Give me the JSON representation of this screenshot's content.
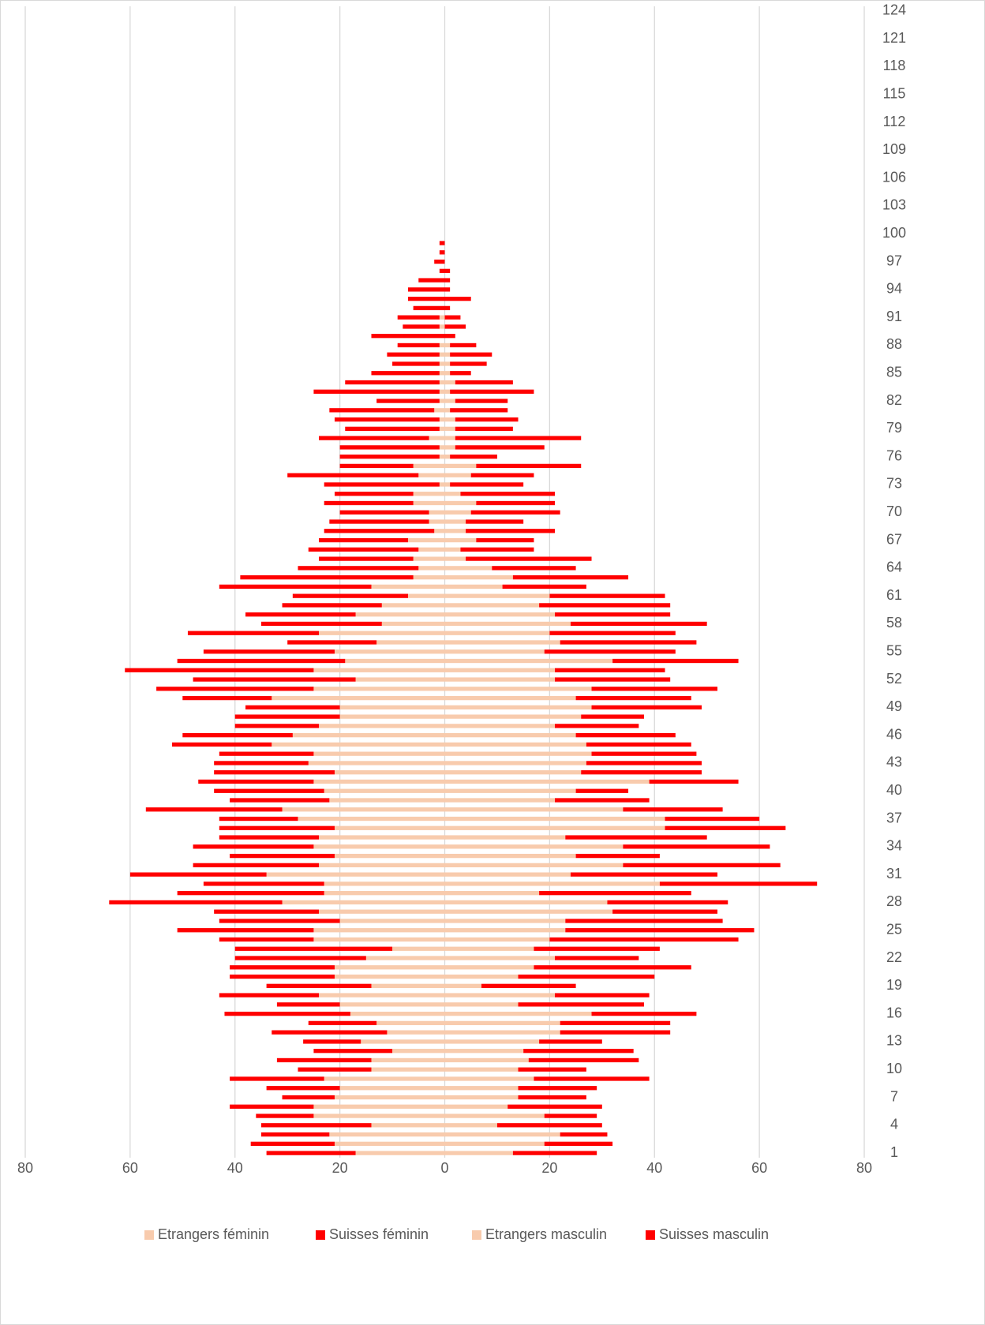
{
  "chart_data": {
    "type": "bar",
    "orientation": "horizontal",
    "stacked": true,
    "legend": "bottom",
    "grid": true,
    "categories": [
      1,
      null,
      null,
      4,
      null,
      null,
      7,
      null,
      null,
      10,
      null,
      null,
      13,
      null,
      null,
      16,
      null,
      null,
      19,
      null,
      null,
      22,
      null,
      null,
      25,
      null,
      null,
      28,
      null,
      null,
      31,
      null,
      null,
      34,
      null,
      null,
      37,
      null,
      null,
      40,
      null,
      null,
      43,
      null,
      null,
      46,
      null,
      null,
      49,
      null,
      null,
      52,
      null,
      null,
      55,
      null,
      null,
      58,
      null,
      null,
      61,
      null,
      null,
      64,
      null,
      null,
      67,
      null,
      null,
      70,
      null,
      null,
      73,
      null,
      null,
      76,
      null,
      null,
      79,
      null,
      null,
      82,
      null,
      null,
      85,
      null,
      null,
      88,
      null,
      null,
      91,
      null,
      null,
      94,
      null,
      null,
      97,
      null,
      null,
      100,
      null,
      null,
      103,
      null,
      null,
      106,
      null,
      null,
      109,
      null,
      null,
      112,
      null,
      null,
      115,
      null,
      null,
      118,
      null,
      null,
      121,
      null,
      null,
      124
    ],
    "xlim": [
      -80,
      80
    ],
    "xticks": [
      {
        "value": -80,
        "label": "80"
      },
      {
        "value": -60,
        "label": "60"
      },
      {
        "value": -40,
        "label": "40"
      },
      {
        "value": -20,
        "label": "20"
      },
      0,
      20,
      40,
      60,
      80
    ],
    "series": [
      {
        "name": "Etrangers féminin",
        "color": "#f8cbad",
        "values": [
          -17,
          -21,
          -22,
          -14,
          -25,
          -25,
          -21,
          -20,
          -23,
          -14,
          -14,
          -10,
          -16,
          -11,
          -13,
          -18,
          -20,
          -24,
          -14,
          -21,
          -21,
          -15,
          -10,
          -25,
          -25,
          -20,
          -24,
          -31,
          -23,
          -23,
          -34,
          -24,
          -21,
          -25,
          -24,
          -21,
          -28,
          -31,
          -22,
          -23,
          -25,
          -21,
          -26,
          -25,
          -33,
          -29,
          -24,
          -20,
          -20,
          -33,
          -25,
          -17,
          -25,
          -19,
          -21,
          -13,
          -24,
          -12,
          -17,
          -12,
          -7,
          -14,
          -6,
          -5,
          -6,
          -5,
          -7,
          -2,
          -3,
          -3,
          -6,
          -6,
          -1,
          -5,
          -6,
          -1,
          -1,
          -3,
          -1,
          -1,
          -2,
          -1,
          -1,
          -1,
          -1,
          -1,
          -1,
          -1,
          0,
          -1,
          -1,
          0,
          0,
          0,
          0,
          0,
          0,
          0,
          0,
          0,
          0,
          0,
          0,
          0,
          0,
          0,
          0,
          0,
          0,
          0,
          0,
          0,
          0,
          0,
          0,
          0,
          0,
          0,
          0,
          0,
          0,
          0,
          0,
          0
        ]
      },
      {
        "name": "Suisses féminin",
        "color": "#ff0000",
        "values": [
          -17,
          -16,
          -13,
          -21,
          -11,
          -16,
          -10,
          -14,
          -18,
          -14,
          -18,
          -15,
          -11,
          -22,
          -13,
          -24,
          -12,
          -19,
          -20,
          -20,
          -20,
          -25,
          -30,
          -18,
          -26,
          -23,
          -20,
          -33,
          -28,
          -23,
          -26,
          -24,
          -20,
          -23,
          -19,
          -22,
          -15,
          -26,
          -19,
          -21,
          -22,
          -23,
          -18,
          -18,
          -19,
          -21,
          -16,
          -20,
          -18,
          -17,
          -30,
          -31,
          -36,
          -32,
          -25,
          -17,
          -25,
          -23,
          -21,
          -19,
          -22,
          -29,
          -33,
          -23,
          -18,
          -21,
          -17,
          -21,
          -19,
          -17,
          -17,
          -15,
          -22,
          -25,
          -14,
          -19,
          -19,
          -21,
          -18,
          -20,
          -20,
          -12,
          -24,
          -18,
          -13,
          -9,
          -10,
          -8,
          -14,
          -7,
          -8,
          -6,
          -7,
          -7,
          -5,
          -1,
          -2,
          -1,
          -1,
          0,
          0,
          0,
          0,
          0,
          0,
          0,
          0,
          0,
          0,
          0,
          0,
          0,
          0,
          0,
          0,
          0,
          0,
          0,
          0,
          0,
          0,
          0,
          0,
          0
        ]
      },
      {
        "name": "Etrangers masculin",
        "color": "#f8cbad",
        "values": [
          13,
          19,
          22,
          10,
          19,
          12,
          14,
          14,
          17,
          14,
          16,
          15,
          18,
          22,
          22,
          28,
          14,
          21,
          7,
          14,
          17,
          21,
          17,
          20,
          23,
          23,
          32,
          31,
          18,
          41,
          24,
          34,
          25,
          34,
          23,
          42,
          42,
          34,
          21,
          25,
          39,
          26,
          27,
          28,
          27,
          25,
          21,
          26,
          28,
          25,
          28,
          21,
          21,
          32,
          19,
          22,
          20,
          24,
          21,
          18,
          20,
          11,
          13,
          9,
          4,
          3,
          6,
          4,
          4,
          5,
          6,
          3,
          1,
          5,
          6,
          1,
          2,
          2,
          2,
          2,
          1,
          2,
          1,
          2,
          1,
          1,
          1,
          1,
          0,
          0,
          0,
          0,
          0,
          0,
          0,
          0,
          0,
          0,
          0,
          0,
          0,
          0,
          0,
          0,
          0,
          0,
          0,
          0,
          0,
          0,
          0,
          0,
          0,
          0,
          0,
          0,
          0,
          0,
          0,
          0,
          0,
          0,
          0,
          0
        ]
      },
      {
        "name": "Suisses masculin",
        "color": "#ff0000",
        "values": [
          16,
          13,
          9,
          20,
          10,
          18,
          13,
          15,
          22,
          13,
          21,
          21,
          12,
          21,
          21,
          20,
          24,
          18,
          18,
          26,
          30,
          16,
          24,
          36,
          36,
          30,
          20,
          23,
          29,
          30,
          28,
          30,
          16,
          28,
          27,
          23,
          18,
          19,
          18,
          10,
          17,
          23,
          22,
          20,
          20,
          19,
          16,
          12,
          21,
          22,
          24,
          22,
          21,
          24,
          25,
          26,
          24,
          26,
          22,
          25,
          22,
          16,
          22,
          16,
          24,
          14,
          11,
          17,
          11,
          17,
          15,
          18,
          14,
          12,
          20,
          9,
          17,
          24,
          11,
          12,
          11,
          10,
          16,
          11,
          4,
          7,
          8,
          5,
          2,
          4,
          3,
          1,
          5,
          1,
          1,
          1,
          0,
          0,
          0,
          0,
          0,
          0,
          0,
          0,
          0,
          0,
          0,
          0,
          0,
          0,
          0,
          0,
          0,
          0,
          0,
          0,
          0,
          0,
          0,
          0,
          0,
          0,
          0,
          0
        ]
      }
    ]
  }
}
